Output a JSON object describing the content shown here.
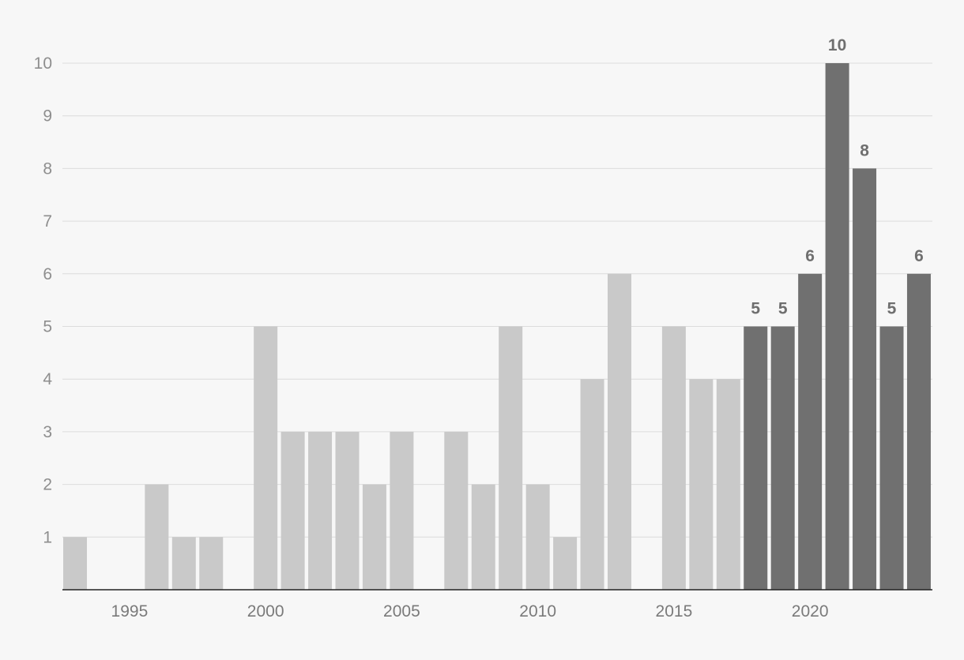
{
  "chart_data": {
    "type": "bar",
    "title": "",
    "xlabel": "",
    "ylabel": "",
    "categories": [
      1993,
      1994,
      1995,
      1996,
      1997,
      1998,
      1999,
      2000,
      2001,
      2002,
      2003,
      2004,
      2005,
      2006,
      2007,
      2008,
      2009,
      2010,
      2011,
      2012,
      2013,
      2014,
      2015,
      2016,
      2017,
      2018,
      2019,
      2020,
      2021,
      2022,
      2023,
      2024
    ],
    "values": [
      1,
      0,
      0,
      2,
      1,
      1,
      0,
      5,
      3,
      3,
      3,
      2,
      3,
      0,
      3,
      2,
      5,
      2,
      1,
      4,
      6,
      0,
      5,
      4,
      4,
      5,
      5,
      6,
      10,
      8,
      5,
      6
    ],
    "highlight_from": 2018,
    "labeled_values": [
      {
        "x": 2018,
        "label": "5"
      },
      {
        "x": 2019,
        "label": "5"
      },
      {
        "x": 2020,
        "label": "6"
      },
      {
        "x": 2021,
        "label": "10"
      },
      {
        "x": 2022,
        "label": "8"
      },
      {
        "x": 2023,
        "label": "5"
      },
      {
        "x": 2024,
        "label": "6"
      }
    ],
    "ylim": [
      0,
      10
    ],
    "y_ticks": [
      "1",
      "2",
      "3",
      "4",
      "5",
      "6",
      "7",
      "8",
      "9",
      "10"
    ],
    "x_ticks": [
      "1995",
      "2000",
      "2005",
      "2010",
      "2015",
      "2020"
    ],
    "grid": true,
    "colors": {
      "default_bar": "#c9c9c9",
      "highlight_bar": "#707070"
    }
  }
}
